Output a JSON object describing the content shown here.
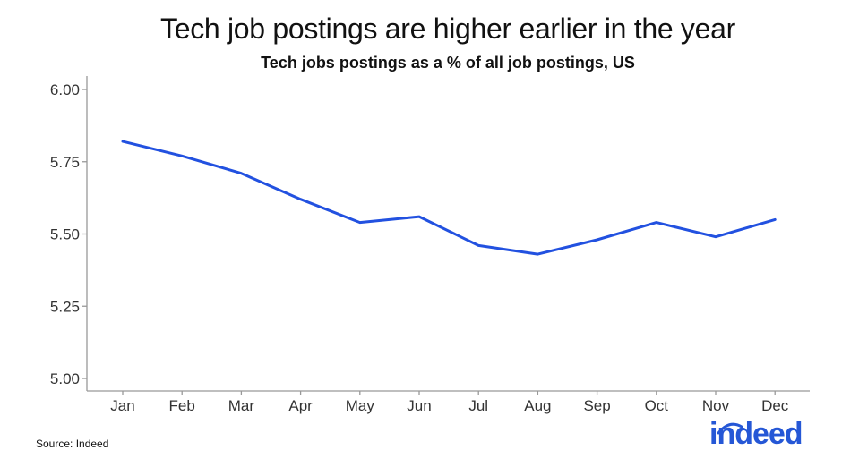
{
  "chart_data": {
    "type": "line",
    "title": "Tech job postings are higher earlier in the year",
    "subtitle": "Tech jobs postings as a % of all job postings, US",
    "xlabel": "",
    "ylabel": "",
    "categories": [
      "Jan",
      "Feb",
      "Mar",
      "Apr",
      "May",
      "Jun",
      "Jul",
      "Aug",
      "Sep",
      "Oct",
      "Nov",
      "Dec"
    ],
    "series": [
      {
        "values": [
          5.82,
          5.77,
          5.71,
          5.62,
          5.54,
          5.56,
          5.46,
          5.43,
          5.48,
          5.54,
          5.49,
          5.55
        ]
      }
    ],
    "ylim": [
      5.0,
      6.0
    ],
    "yticks": [
      "5.00",
      "5.25",
      "5.50",
      "5.75",
      "6.00"
    ],
    "grid": false,
    "legend": "none",
    "line_color": "#2251e0"
  },
  "footer": {
    "source": "Source: Indeed",
    "logo_text": "indeed",
    "logo_color": "#2557d6"
  }
}
